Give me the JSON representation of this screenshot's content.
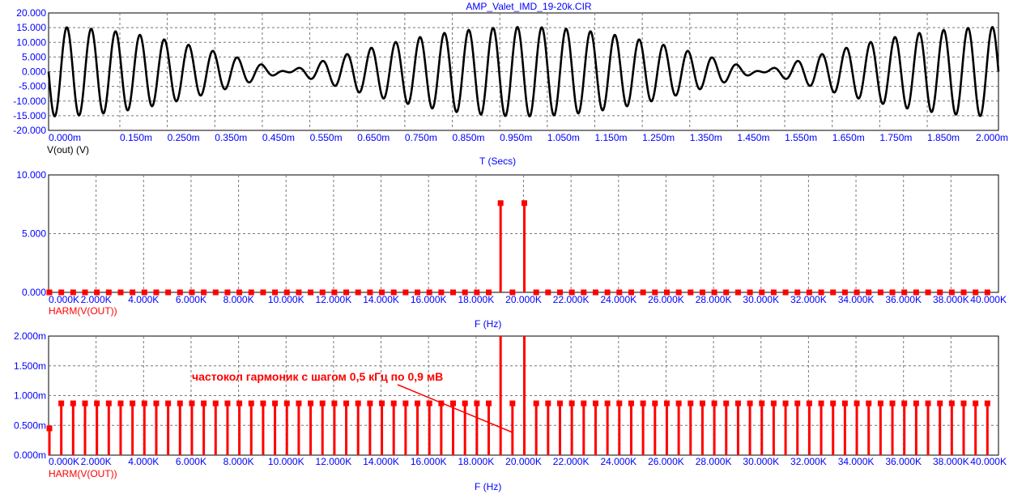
{
  "colors": {
    "axis_text": "#0000ff",
    "trace_time": "#000000",
    "trace_harm": "#ff0000",
    "grid": "#777777",
    "bg": "#ffffff"
  },
  "chart_data": [
    {
      "type": "line",
      "title": "AMP_Valet_IMD_19-20k.CIR",
      "xlabel": "T (Secs)",
      "ylabel": "V(out) (V)",
      "xlim": [
        0,
        0.002
      ],
      "ylim": [
        -20,
        20
      ],
      "x_ticks": [
        "0.000m",
        "0.150m",
        "0.250m",
        "0.350m",
        "0.450m",
        "0.550m",
        "0.650m",
        "0.750m",
        "0.850m",
        "0.950m",
        "1.050m",
        "1.150m",
        "1.250m",
        "1.350m",
        "1.450m",
        "1.550m",
        "1.650m",
        "1.750m",
        "1.850m",
        "2.000m"
      ],
      "y_ticks": [
        "20.000",
        "15.000",
        "10.000",
        "5.000",
        "0.000",
        "-5.000",
        "-10.000",
        "-15.000",
        "-20.000"
      ],
      "series": [
        {
          "name": "V(out) (V)",
          "description_frequencies_hz": [
            19000,
            20000
          ],
          "amplitude_each_v": 7.6
        }
      ],
      "grid": true
    },
    {
      "type": "bar",
      "xlabel": "F (Hz)",
      "xlim": [
        0,
        40000
      ],
      "ylim": [
        0,
        10
      ],
      "x_ticks": [
        "0.000K",
        "2.000K",
        "4.000K",
        "6.000K",
        "8.000K",
        "10.000K",
        "12.000K",
        "14.000K",
        "16.000K",
        "18.000K",
        "20.000K",
        "22.000K",
        "24.000K",
        "26.000K",
        "28.000K",
        "30.000K",
        "32.000K",
        "34.000K",
        "36.000K",
        "38.000K",
        "40.000K"
      ],
      "y_ticks": [
        "10.000",
        "5.000",
        "0.000"
      ],
      "series": [
        {
          "name": "HARM(V(OUT))",
          "peaks": [
            {
              "x": 19000,
              "y": 7.6
            },
            {
              "x": 20000,
              "y": 7.6
            }
          ],
          "baseline_step_hz": 500,
          "baseline_value": 0
        }
      ],
      "grid": true
    },
    {
      "type": "bar",
      "xlabel": "F (Hz)",
      "xlim": [
        0,
        40000
      ],
      "ylim": [
        0,
        0.002
      ],
      "x_ticks": [
        "0.000K",
        "2.000K",
        "4.000K",
        "6.000K",
        "8.000K",
        "10.000K",
        "12.000K",
        "14.000K",
        "16.000K",
        "18.000K",
        "20.000K",
        "22.000K",
        "24.000K",
        "26.000K",
        "28.000K",
        "30.000K",
        "32.000K",
        "34.000K",
        "36.000K",
        "38.000K",
        "40.000K"
      ],
      "y_ticks": [
        "2.000m",
        "1.500m",
        "1.000m",
        "0.500m",
        "0.000m"
      ],
      "series": [
        {
          "name": "HARM(V(OUT))",
          "step_hz": 500,
          "typical_value": 0.00087,
          "first_value": 0.00045,
          "clipped_peaks_hz": [
            19000,
            20000
          ]
        }
      ],
      "annotation": "частокол гармоник с шагом 0,5 кГц по 0,9 мВ",
      "grid": true
    }
  ]
}
